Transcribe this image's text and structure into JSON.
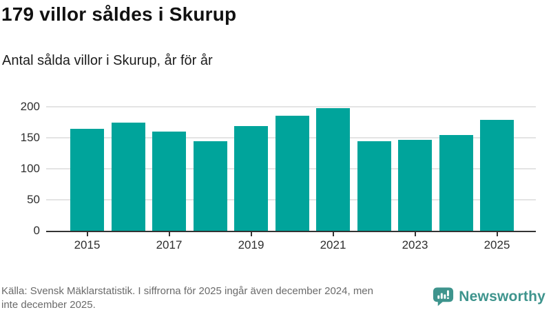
{
  "header": {
    "title": "179 villor såldes i Skurup",
    "subtitle": "Antal sålda villor i Skurup, år för år"
  },
  "chart_data": {
    "type": "bar",
    "title": "179 villor såldes i Skurup",
    "subtitle": "Antal sålda villor i Skurup, år för år",
    "categories": [
      "2015",
      "2016",
      "2017",
      "2018",
      "2019",
      "2020",
      "2021",
      "2022",
      "2023",
      "2024",
      "2025"
    ],
    "values": [
      165,
      174,
      160,
      145,
      169,
      186,
      198,
      145,
      147,
      154,
      179
    ],
    "xtick_labels": [
      "2015",
      "2017",
      "2019",
      "2021",
      "2023",
      "2025"
    ],
    "yticks": [
      0,
      50,
      100,
      150,
      200
    ],
    "ylim": [
      0,
      200
    ],
    "xlabel": "",
    "ylabel": "",
    "grid": "horizontal",
    "legend": "none",
    "bar_color": "#00a49b",
    "gridline_color": "#e4e4e4",
    "axis_color": "#333333"
  },
  "footer": {
    "source_line1": "Källa: Svensk Mäklarstatistik. I siffrorna för 2025 ingår även december 2024, men",
    "source_line2": "inte december 2025."
  },
  "brand": {
    "name": "Newsworthy",
    "color": "#3e948d",
    "logo_icon": "bar-chart-speech-bubble"
  }
}
